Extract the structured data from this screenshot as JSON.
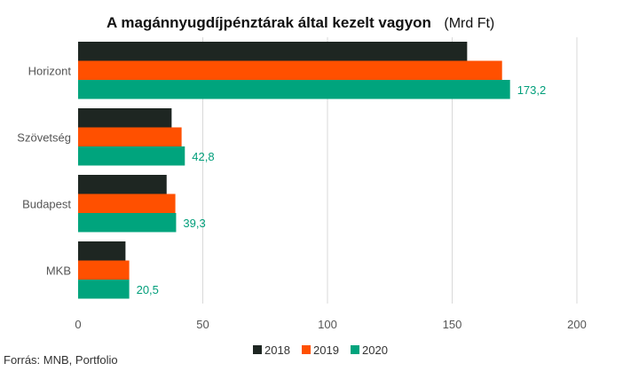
{
  "chart_data": {
    "type": "bar",
    "orientation": "horizontal",
    "title": "A magánnyugdíjpénztárak által kezelt vagyon",
    "unit": "(Mrd Ft)",
    "categories": [
      "Horizont",
      "Szövetség",
      "Budapest",
      "MKB"
    ],
    "series": [
      {
        "name": "2018",
        "color": "#1e2622",
        "values": [
          156.0,
          37.5,
          35.5,
          19.0
        ]
      },
      {
        "name": "2019",
        "color": "#ff5000",
        "values": [
          170.0,
          41.5,
          39.0,
          20.5
        ]
      },
      {
        "name": "2020",
        "color": "#00a47d",
        "values": [
          173.2,
          42.8,
          39.3,
          20.5
        ]
      }
    ],
    "data_labels": [
      "173,2",
      "42,8",
      "39,3",
      "20,5"
    ],
    "x_ticks": [
      0,
      50,
      100,
      150,
      200
    ],
    "xlim": [
      0,
      200
    ],
    "grid": true,
    "legend_position": "bottom",
    "source": "Forrás: MNB, Portfolio"
  }
}
